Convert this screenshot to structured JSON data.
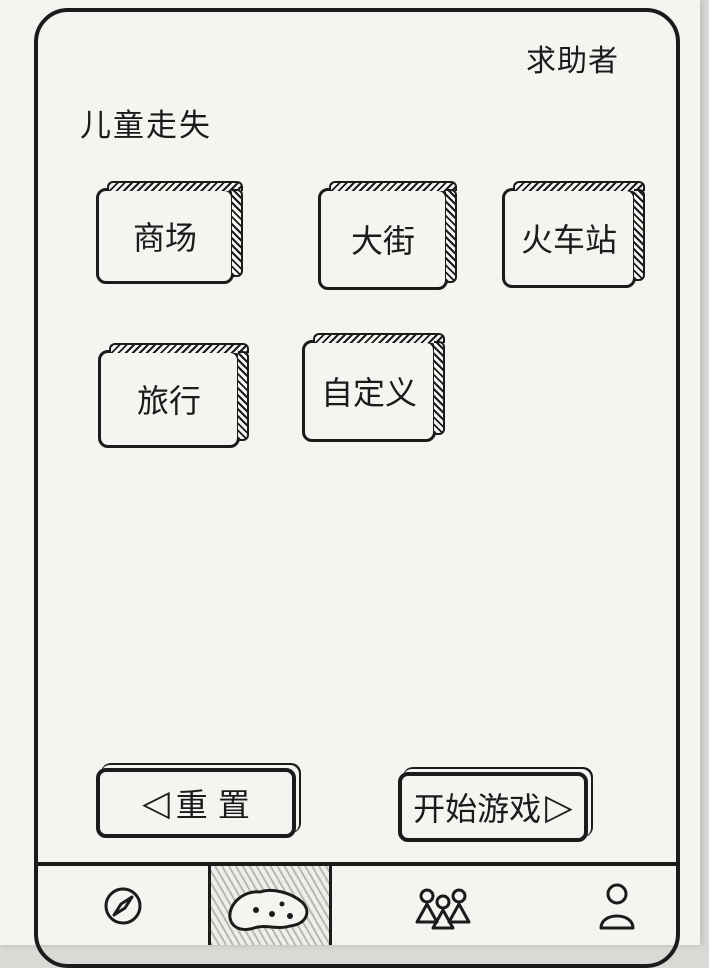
{
  "header": {
    "helper_link": "求助者"
  },
  "page": {
    "title": "儿童走失"
  },
  "scenarios": [
    {
      "label": "商场"
    },
    {
      "label": "大街"
    },
    {
      "label": "火车站"
    },
    {
      "label": "旅行"
    },
    {
      "label": "自定义"
    }
  ],
  "actions": {
    "reset_label": "重 置",
    "start_label": "开始游戏"
  },
  "tabbar": {
    "items": [
      {
        "icon": "compass-icon"
      },
      {
        "icon": "map-icon",
        "active": true
      },
      {
        "icon": "group-icon"
      },
      {
        "icon": "profile-icon"
      }
    ]
  }
}
